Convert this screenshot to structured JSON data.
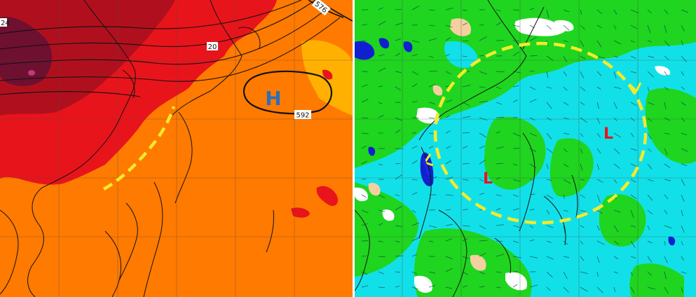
{
  "left_map": {
    "high_label": "H",
    "contour_labels": [
      "592",
      "576",
      "20",
      "24"
    ],
    "colors": {
      "background": "#ff7a00",
      "red": "#e8141b",
      "deep_red": "#b0101e",
      "maroon": "#6e1030",
      "magenta": "#c03a7a",
      "light_orange": "#ffb000",
      "h_letter": "#2f6fb5",
      "trough_line": "#f5ea2a",
      "contour": "#111111"
    }
  },
  "right_map": {
    "low_labels": [
      "L",
      "L"
    ],
    "colors": {
      "background": "#12e0e8",
      "green": "#1fd51f",
      "blue": "#1020d0",
      "white": "#ffffff",
      "tan": "#f5cfa0",
      "l_letter": "#e8141b",
      "circle_line": "#f5ea2a",
      "trough_blue": "#1a2ad8",
      "vector": "#0a3a3a"
    }
  }
}
